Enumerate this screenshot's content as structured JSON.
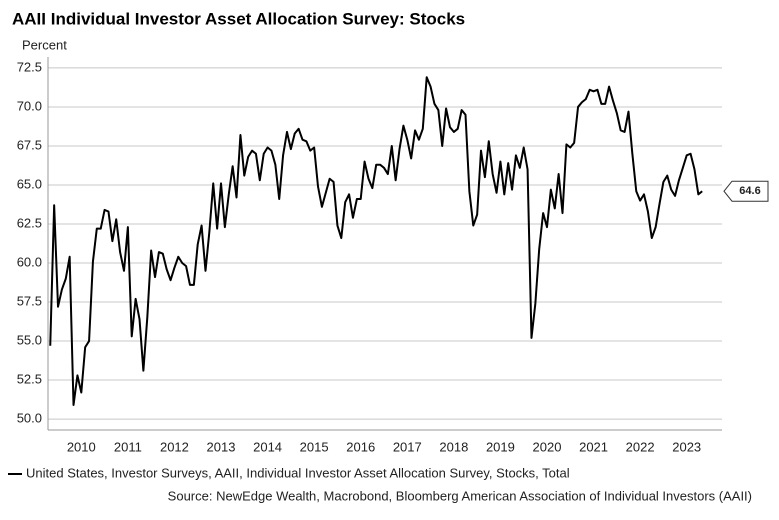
{
  "chart_data": {
    "type": "line",
    "title": "AAII Individual Investor Asset Allocation Survey: Stocks",
    "y_label": "Percent",
    "source": "Source: NewEdge Wealth, Macrobond, Bloomberg American Association of Individual Investors (AAII)",
    "x": [
      2009.833,
      2009.917,
      2010,
      2010.083,
      2010.167,
      2010.25,
      2010.333,
      2010.417,
      2010.5,
      2010.583,
      2010.667,
      2010.75,
      2010.833,
      2010.917,
      2011,
      2011.083,
      2011.167,
      2011.25,
      2011.333,
      2011.417,
      2011.5,
      2011.583,
      2011.667,
      2011.75,
      2011.833,
      2011.917,
      2012,
      2012.083,
      2012.167,
      2012.25,
      2012.333,
      2012.417,
      2012.5,
      2012.583,
      2012.667,
      2012.75,
      2012.833,
      2012.917,
      2013,
      2013.083,
      2013.167,
      2013.25,
      2013.333,
      2013.417,
      2013.5,
      2013.583,
      2013.667,
      2013.75,
      2013.833,
      2013.917,
      2014,
      2014.083,
      2014.167,
      2014.25,
      2014.333,
      2014.417,
      2014.5,
      2014.583,
      2014.667,
      2014.75,
      2014.833,
      2014.917,
      2015,
      2015.083,
      2015.167,
      2015.25,
      2015.333,
      2015.417,
      2015.5,
      2015.583,
      2015.667,
      2015.75,
      2015.833,
      2015.917,
      2016,
      2016.083,
      2016.167,
      2016.25,
      2016.333,
      2016.417,
      2016.5,
      2016.583,
      2016.667,
      2016.75,
      2016.833,
      2016.917,
      2017,
      2017.083,
      2017.167,
      2017.25,
      2017.333,
      2017.417,
      2017.5,
      2017.583,
      2017.667,
      2017.75,
      2017.833,
      2017.917,
      2018,
      2018.083,
      2018.167,
      2018.25,
      2018.333,
      2018.417,
      2018.5,
      2018.583,
      2018.667,
      2018.75,
      2018.833,
      2018.917,
      2019,
      2019.083,
      2019.167,
      2019.25,
      2019.333,
      2019.417,
      2019.5,
      2019.583,
      2019.667,
      2019.75,
      2019.833,
      2019.917,
      2020,
      2020.083,
      2020.167,
      2020.25,
      2020.333,
      2020.417,
      2020.5,
      2020.583,
      2020.667,
      2020.75,
      2020.833,
      2020.917,
      2021,
      2021.083,
      2021.167,
      2021.25,
      2021.333,
      2021.417,
      2021.5,
      2021.583,
      2021.667,
      2021.75,
      2021.833,
      2021.917,
      2022,
      2022.083,
      2022.167,
      2022.25,
      2022.333,
      2022.417,
      2022.5,
      2022.583,
      2022.667,
      2022.75,
      2022.833,
      2022.917,
      2023,
      2023.083,
      2023.167,
      2023.25,
      2023.333,
      2023.417,
      2023.5,
      2023.583,
      2023.667,
      2023.75,
      2023.833
    ],
    "series": [
      {
        "name": "United States, Investor Surveys, AAII, Individual Investor Asset Allocation Survey, Stocks, Total",
        "color": "#000000",
        "values": [
          54.7,
          63.7,
          57.2,
          58.3,
          59.0,
          60.4,
          50.9,
          52.8,
          51.7,
          54.6,
          55.0,
          60.1,
          62.2,
          62.2,
          63.4,
          63.3,
          61.4,
          62.8,
          60.7,
          59.5,
          62.3,
          55.3,
          57.7,
          56.4,
          53.1,
          56.5,
          60.8,
          59.1,
          60.7,
          60.6,
          59.6,
          58.9,
          59.7,
          60.4,
          60.0,
          59.8,
          58.6,
          58.6,
          61.2,
          62.4,
          59.5,
          62.0,
          65.1,
          62.2,
          65.1,
          62.3,
          64.4,
          66.2,
          64.2,
          68.2,
          65.6,
          66.8,
          67.2,
          67.0,
          65.3,
          67.0,
          67.4,
          67.2,
          66.3,
          64.1,
          66.9,
          68.4,
          67.3,
          68.3,
          68.6,
          67.9,
          67.8,
          67.2,
          67.4,
          64.9,
          63.6,
          64.5,
          65.4,
          65.2,
          62.4,
          61.6,
          63.9,
          64.4,
          62.9,
          64.1,
          64.1,
          66.5,
          65.4,
          64.8,
          66.3,
          66.3,
          66.1,
          65.7,
          67.5,
          65.3,
          67.3,
          68.8,
          67.9,
          66.7,
          68.5,
          67.9,
          68.6,
          71.9,
          71.3,
          70.2,
          69.8,
          67.5,
          69.9,
          68.7,
          68.4,
          68.6,
          69.8,
          69.5,
          64.6,
          62.4,
          63.1,
          67.2,
          65.5,
          67.8,
          65.7,
          64.5,
          66.5,
          64.4,
          66.4,
          64.7,
          66.9,
          66.1,
          67.4,
          66.0,
          55.2,
          57.4,
          60.9,
          63.2,
          62.3,
          64.7,
          63.5,
          65.7,
          63.2,
          67.6,
          67.4,
          67.7,
          70.0,
          70.3,
          70.5,
          71.1,
          71.0,
          71.1,
          70.2,
          70.2,
          71.3,
          70.4,
          69.6,
          68.5,
          68.4,
          69.7,
          67.0,
          64.6,
          64.0,
          64.4,
          63.3,
          61.6,
          62.3,
          63.8,
          65.2,
          65.6,
          64.7,
          64.3,
          65.3,
          66.1,
          66.9,
          67.0,
          66.0,
          64.4,
          64.6
        ]
      }
    ],
    "xlim": [
      2009.785,
      2024.258
    ],
    "xticks": [
      {
        "value": 2010.5,
        "label": "2010"
      },
      {
        "value": 2011.5,
        "label": "2011"
      },
      {
        "value": 2012.5,
        "label": "2012"
      },
      {
        "value": 2013.5,
        "label": "2013"
      },
      {
        "value": 2014.5,
        "label": "2014"
      },
      {
        "value": 2015.5,
        "label": "2015"
      },
      {
        "value": 2016.5,
        "label": "2016"
      },
      {
        "value": 2017.5,
        "label": "2017"
      },
      {
        "value": 2018.5,
        "label": "2018"
      },
      {
        "value": 2019.5,
        "label": "2019"
      },
      {
        "value": 2020.5,
        "label": "2020"
      },
      {
        "value": 2021.5,
        "label": "2021"
      },
      {
        "value": 2022.5,
        "label": "2022"
      },
      {
        "value": 2023.5,
        "label": "2023"
      }
    ],
    "ylim": [
      49.3,
      73.2
    ],
    "yticks": [
      {
        "value": 50,
        "label": "50.0"
      },
      {
        "value": 52.5,
        "label": "52.5"
      },
      {
        "value": 55,
        "label": "55.0"
      },
      {
        "value": 57.5,
        "label": "57.5"
      },
      {
        "value": 60,
        "label": "60.0"
      },
      {
        "value": 62.5,
        "label": "62.5"
      },
      {
        "value": 65,
        "label": "65.0"
      },
      {
        "value": 67.5,
        "label": "67.5"
      },
      {
        "value": 70,
        "label": "70.0"
      },
      {
        "value": 72.5,
        "label": "72.5"
      }
    ],
    "grid": true,
    "legend": "bottom-left"
  }
}
